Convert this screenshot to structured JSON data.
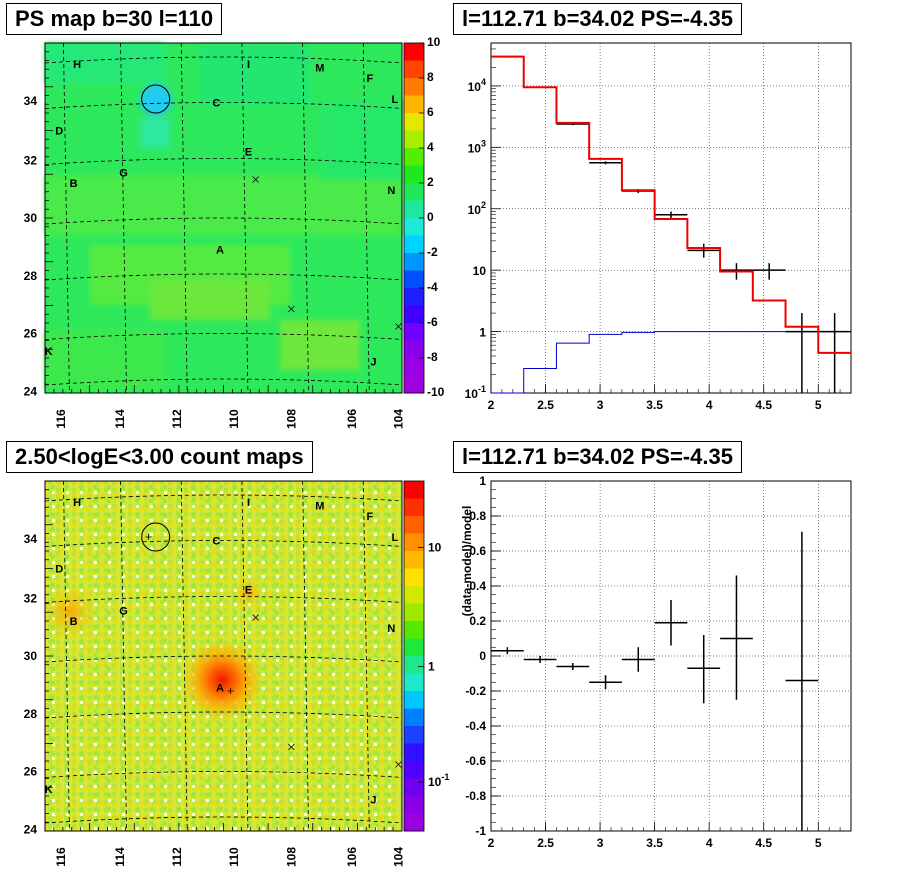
{
  "titles": {
    "tl": "PS map b=30 l=110",
    "tr": "l=112.71 b=34.02 PS=-4.35",
    "bl": "2.50<logE<3.00 count maps",
    "br": "l=112.71 b=34.02 PS=-4.35"
  },
  "colors": {
    "map_bg_top": "#29e85a",
    "map_bg_counts": "#c6e833",
    "model_line": "#ee0000",
    "background_line": "#0000cc",
    "data": "#000000"
  },
  "map_axes": {
    "xticks": [
      "116",
      "114",
      "112",
      "110",
      "108",
      "106",
      "104"
    ],
    "yticks": [
      "24",
      "26",
      "28",
      "30",
      "32",
      "34"
    ]
  },
  "source_labels": [
    "H",
    "I",
    "M",
    "F",
    "L",
    "C",
    "D",
    "E",
    "G",
    "B",
    "N",
    "A",
    "K",
    "J"
  ],
  "colorbar_top": {
    "ticks": [
      "10",
      "8",
      "6",
      "4",
      "2",
      "0",
      "-2",
      "-4",
      "-6",
      "-8",
      "-10"
    ],
    "colors": [
      "#ff0000",
      "#ff4400",
      "#ff7a00",
      "#ffb400",
      "#e6e600",
      "#a8ee00",
      "#55ee00",
      "#1ee81e",
      "#1ee85a",
      "#1ee8a0",
      "#1ee8d8",
      "#00d2ff",
      "#0096ff",
      "#0050ff",
      "#2020ff",
      "#4000ff",
      "#7000ff",
      "#8800ee",
      "#9a00e6",
      "#a000e0"
    ]
  },
  "colorbar_bottom": {
    "ticks": [
      "10",
      "1",
      "10^-1"
    ],
    "colors": [
      "#ff0000",
      "#ff3000",
      "#ff6000",
      "#ff9000",
      "#ffb800",
      "#ffe000",
      "#d2e800",
      "#a0e800",
      "#55e800",
      "#1ee83c",
      "#1ee88c",
      "#1ee8cc",
      "#00c8ff",
      "#0080ff",
      "#1e40ff",
      "#3010ff",
      "#5000ff",
      "#7000f0",
      "#8800e8",
      "#9a00e0"
    ]
  },
  "chart_data": [
    {
      "type": "line",
      "title": "l=112.71 b=34.02 PS=-4.35",
      "x_axis": {
        "range": [
          2,
          5.3
        ],
        "ticks": [
          "2",
          "2.5",
          "3",
          "3.5",
          "4",
          "4.5",
          "5"
        ]
      },
      "y_axis": {
        "scale": "log",
        "range": [
          0.1,
          50000
        ],
        "ticks": [
          "10^-1",
          "1",
          "10",
          "10^2",
          "10^3",
          "10^4"
        ]
      },
      "grid": true,
      "series": [
        {
          "kind": "model",
          "edges": [
            2.0,
            2.3,
            2.6,
            2.9,
            3.2,
            3.5,
            3.8,
            4.1,
            4.4,
            4.7,
            5.0,
            5.3
          ],
          "values": [
            30000,
            9500,
            2500,
            650,
            200,
            68,
            23,
            9.5,
            3.2,
            1.2,
            0.45
          ]
        },
        {
          "kind": "background",
          "edges": [
            2.0,
            2.3,
            2.6,
            2.9,
            3.2,
            3.5,
            3.8,
            4.1,
            4.4,
            4.7,
            5.0,
            5.3
          ],
          "values": [
            0.05,
            0.25,
            0.65,
            0.9,
            0.97,
            1.0,
            1.0,
            1.0,
            1.0,
            1.0,
            1.0
          ]
        },
        {
          "kind": "data",
          "points": [
            {
              "x": 2.15,
              "y": 30000,
              "xerr": 0.15,
              "ylo": 29000,
              "yhi": 31000
            },
            {
              "x": 2.45,
              "y": 9500,
              "xerr": 0.15,
              "ylo": 9300,
              "yhi": 9700
            },
            {
              "x": 2.75,
              "y": 2400,
              "xerr": 0.15,
              "ylo": 2300,
              "yhi": 2500
            },
            {
              "x": 3.05,
              "y": 560,
              "xerr": 0.15,
              "ylo": 530,
              "yhi": 590
            },
            {
              "x": 3.35,
              "y": 195,
              "xerr": 0.15,
              "ylo": 180,
              "yhi": 210
            },
            {
              "x": 3.65,
              "y": 80,
              "xerr": 0.15,
              "ylo": 70,
              "yhi": 90
            },
            {
              "x": 3.95,
              "y": 21,
              "xerr": 0.15,
              "ylo": 16,
              "yhi": 27
            },
            {
              "x": 4.25,
              "y": 10,
              "xerr": 0.15,
              "ylo": 7,
              "yhi": 13
            },
            {
              "x": 4.55,
              "y": 10,
              "xerr": 0.15,
              "ylo": 7,
              "yhi": 13
            },
            {
              "x": 4.85,
              "y": 1.0,
              "xerr": 0.15,
              "ylo": 0.1,
              "yhi": 2.0
            },
            {
              "x": 5.15,
              "y": 1.0,
              "xerr": 0.15,
              "ylo": 0.1,
              "yhi": 2.0
            }
          ]
        }
      ]
    },
    {
      "type": "scatter",
      "title": "l=112.71 b=34.02 PS=-4.35",
      "ylabel": "(data-model)/model",
      "x_axis": {
        "range": [
          2,
          5.3
        ],
        "ticks": [
          "2",
          "2.5",
          "3",
          "3.5",
          "4",
          "4.5",
          "5"
        ]
      },
      "y_axis": {
        "range": [
          -1,
          1
        ],
        "ticks": [
          "1",
          "0.8",
          "0.6",
          "0.4",
          "0.2",
          "0",
          "-0.2",
          "-0.4",
          "-0.6",
          "-0.8",
          "-1"
        ]
      },
      "grid": true,
      "points": [
        {
          "x": 2.15,
          "y": 0.03,
          "xerr": 0.15,
          "ylo": 0.01,
          "yhi": 0.05
        },
        {
          "x": 2.45,
          "y": -0.02,
          "xerr": 0.15,
          "ylo": -0.04,
          "yhi": 0.0
        },
        {
          "x": 2.75,
          "y": -0.06,
          "xerr": 0.15,
          "ylo": -0.08,
          "yhi": -0.04
        },
        {
          "x": 3.05,
          "y": -0.15,
          "xerr": 0.15,
          "ylo": -0.19,
          "yhi": -0.11
        },
        {
          "x": 3.35,
          "y": -0.02,
          "xerr": 0.15,
          "ylo": -0.09,
          "yhi": 0.05
        },
        {
          "x": 3.65,
          "y": 0.19,
          "xerr": 0.15,
          "ylo": 0.06,
          "yhi": 0.32
        },
        {
          "x": 3.95,
          "y": -0.07,
          "xerr": 0.15,
          "ylo": -0.27,
          "yhi": 0.12
        },
        {
          "x": 4.25,
          "y": 0.1,
          "xerr": 0.15,
          "ylo": -0.25,
          "yhi": 0.46
        },
        {
          "x": 4.85,
          "y": -0.14,
          "xerr": 0.15,
          "ylo": -1.0,
          "yhi": 0.71
        }
      ]
    }
  ]
}
